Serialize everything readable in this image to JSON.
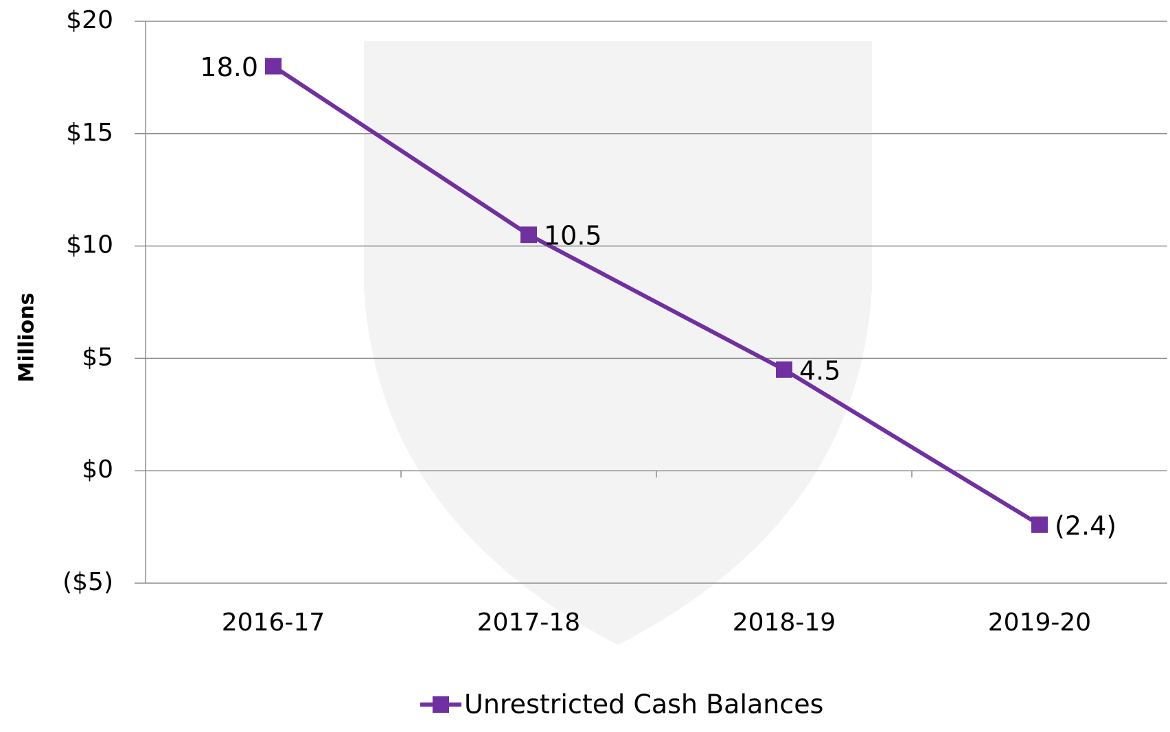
{
  "chart_data": {
    "type": "line",
    "y_label": "Millions",
    "categories": [
      "2016-17",
      "2017-18",
      "2018-19",
      "2019-20"
    ],
    "series": [
      {
        "name": "Unrestricted Cash Balances",
        "color": "#7030a0",
        "values": [
          18.0,
          10.5,
          4.5,
          -2.4
        ],
        "value_labels": [
          "18.0",
          "10.5",
          "4.5",
          "(2.4)"
        ]
      }
    ],
    "ylim": [
      -5,
      20
    ],
    "yticks": [
      {
        "value": 20,
        "label": "$20"
      },
      {
        "value": 15,
        "label": "$15"
      },
      {
        "value": 10,
        "label": "$10"
      },
      {
        "value": 5,
        "label": "$5"
      },
      {
        "value": 0,
        "label": "$0"
      },
      {
        "value": -5,
        "label": "($5)"
      }
    ],
    "grid": true,
    "negative_color": "#ff0000",
    "legend": "bottom"
  }
}
